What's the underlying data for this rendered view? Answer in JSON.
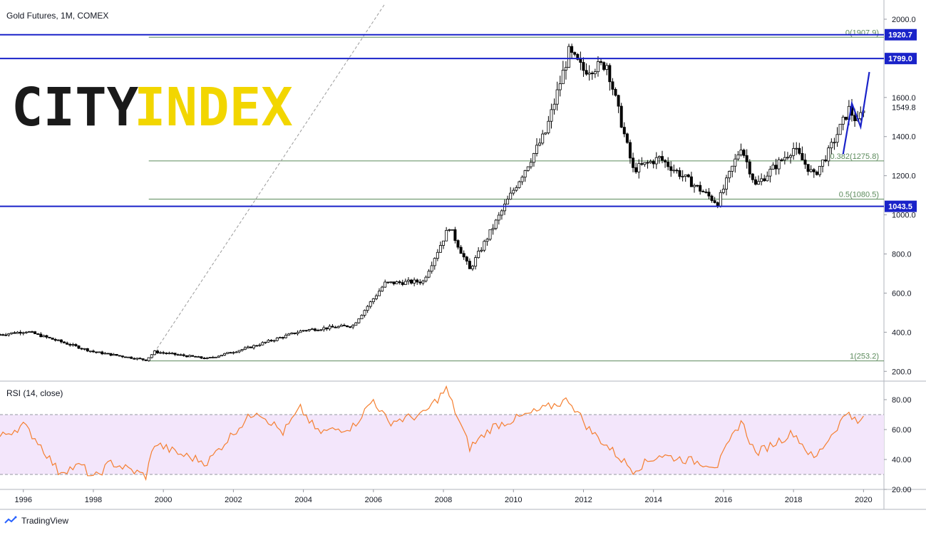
{
  "header": {
    "title": "Gold Futures, 1M, COMEX"
  },
  "logo": {
    "word1": "CITY",
    "word2": "INDEX",
    "color1": "#1a1a1a",
    "color2": "#f2d600"
  },
  "branding": {
    "text": "TradingView"
  },
  "price_axis": {
    "ticks": [
      "2000.0",
      "1600.0",
      "1400.0",
      "1200.0",
      "1000.0",
      "800.0",
      "600.0",
      "400.0",
      "200.0"
    ],
    "tagged_levels": [
      {
        "label": "1920.7",
        "value": 1920.7
      },
      {
        "label": "1799.0",
        "value": 1799.0
      },
      {
        "label": "1043.5",
        "value": 1043.5
      }
    ],
    "last_price_label": "1549.8"
  },
  "rsi_axis": {
    "title": "RSI (14, close)",
    "ticks": [
      "80.00",
      "60.00",
      "40.00",
      "20.00"
    ]
  },
  "time_axis": {
    "labels": [
      "1996",
      "1998",
      "2000",
      "2002",
      "2004",
      "2006",
      "2008",
      "2010",
      "2012",
      "2014",
      "2016",
      "2018",
      "2020"
    ]
  },
  "fib_levels": [
    {
      "label": "0(1907.9)",
      "value": 1907.9
    },
    {
      "label": "0.382(1275.8)",
      "value": 1275.8
    },
    {
      "label": "0.5(1080.5)",
      "value": 1080.5
    },
    {
      "label": "1(253.2)",
      "value": 253.2
    }
  ],
  "colors": {
    "candle_up": "#ffffff",
    "candle_down": "#000000",
    "horizontal_line": "#1a23c9",
    "fib_line": "#5b8a5b",
    "rsi_line": "#f57f30",
    "rsi_band": "#f3e6fb",
    "trend_dash": "#9a9a9a"
  },
  "chart_data": [
    {
      "type": "candlestick",
      "title": "Gold Futures, 1M, COMEX",
      "ylim": [
        150,
        2080
      ],
      "y_ticks": [
        200,
        400,
        600,
        800,
        1000,
        1200,
        1400,
        1600,
        2000
      ],
      "x_range": [
        "1995-05",
        "2020-08"
      ],
      "annotations": [
        "1920.7",
        "1799.0",
        "1043.5",
        "1549.8",
        "0(1907.9)",
        "0.382(1275.8)",
        "0.5(1080.5)",
        "1(253.2)"
      ],
      "close_path": [
        {
          "x": "1995-05",
          "y": 388
        },
        {
          "x": "1996-02",
          "y": 405
        },
        {
          "x": "1997-01",
          "y": 355
        },
        {
          "x": "1998-01",
          "y": 300
        },
        {
          "x": "1999-07",
          "y": 258
        },
        {
          "x": "1999-10",
          "y": 300
        },
        {
          "x": "2001-04",
          "y": 265
        },
        {
          "x": "2002-06",
          "y": 320
        },
        {
          "x": "2004-01",
          "y": 410
        },
        {
          "x": "2005-06",
          "y": 435
        },
        {
          "x": "2006-05",
          "y": 650
        },
        {
          "x": "2007-06",
          "y": 660
        },
        {
          "x": "2008-03",
          "y": 940
        },
        {
          "x": "2008-10",
          "y": 720
        },
        {
          "x": "2009-12",
          "y": 1100
        },
        {
          "x": "2010-12",
          "y": 1420
        },
        {
          "x": "2011-08",
          "y": 1830
        },
        {
          "x": "2012-01",
          "y": 1740
        },
        {
          "x": "2012-09",
          "y": 1770
        },
        {
          "x": "2013-06",
          "y": 1230
        },
        {
          "x": "2014-03",
          "y": 1290
        },
        {
          "x": "2015-11",
          "y": 1060
        },
        {
          "x": "2016-07",
          "y": 1350
        },
        {
          "x": "2016-12",
          "y": 1150
        },
        {
          "x": "2018-01",
          "y": 1340
        },
        {
          "x": "2018-08",
          "y": 1200
        },
        {
          "x": "2019-01",
          "y": 1320
        },
        {
          "x": "2019-08",
          "y": 1540
        },
        {
          "x": "2019-11",
          "y": 1470
        },
        {
          "x": "2020-01",
          "y": 1549.8
        }
      ],
      "horizontal_lines": [
        1920.7,
        1799.0,
        1043.5
      ],
      "trend_line": [
        {
          "x": "1999-08",
          "y": 253.2
        },
        {
          "x": "2006-05",
          "y": 2080
        }
      ],
      "projection": [
        {
          "x": "2019-06",
          "y": 1310
        },
        {
          "x": "2019-09",
          "y": 1570
        },
        {
          "x": "2019-12",
          "y": 1450
        },
        {
          "x": "2020-03",
          "y": 1730
        }
      ]
    },
    {
      "type": "line",
      "title": "RSI (14, close)",
      "ylim": [
        20,
        90
      ],
      "band": [
        30,
        70
      ],
      "y_ticks": [
        20,
        40,
        60,
        80
      ],
      "series": [
        {
          "values": [
            {
              "x": "1995-05",
              "y": 55
            },
            {
              "x": "1996-01",
              "y": 63
            },
            {
              "x": "1996-06",
              "y": 52
            },
            {
              "x": "1997-01",
              "y": 32
            },
            {
              "x": "1997-09",
              "y": 36
            },
            {
              "x": "1998-01",
              "y": 27
            },
            {
              "x": "1998-07",
              "y": 38
            },
            {
              "x": "1999-07",
              "y": 29
            },
            {
              "x": "1999-10",
              "y": 51
            },
            {
              "x": "2000-06",
              "y": 44
            },
            {
              "x": "2001-04",
              "y": 38
            },
            {
              "x": "2002-02",
              "y": 60
            },
            {
              "x": "2002-09",
              "y": 73
            },
            {
              "x": "2003-06",
              "y": 58
            },
            {
              "x": "2003-12",
              "y": 74
            },
            {
              "x": "2004-06",
              "y": 58
            },
            {
              "x": "2005-06",
              "y": 62
            },
            {
              "x": "2006-01",
              "y": 80
            },
            {
              "x": "2006-06",
              "y": 65
            },
            {
              "x": "2007-06",
              "y": 70
            },
            {
              "x": "2008-02",
              "y": 87
            },
            {
              "x": "2008-10",
              "y": 48
            },
            {
              "x": "2009-06",
              "y": 62
            },
            {
              "x": "2010-06",
              "y": 70
            },
            {
              "x": "2011-08",
              "y": 80
            },
            {
              "x": "2012-03",
              "y": 60
            },
            {
              "x": "2013-06",
              "y": 33
            },
            {
              "x": "2014-03",
              "y": 43
            },
            {
              "x": "2015-11",
              "y": 36
            },
            {
              "x": "2016-07",
              "y": 66
            },
            {
              "x": "2016-12",
              "y": 44
            },
            {
              "x": "2018-01",
              "y": 58
            },
            {
              "x": "2018-08",
              "y": 40
            },
            {
              "x": "2019-08",
              "y": 73
            },
            {
              "x": "2019-11",
              "y": 63
            },
            {
              "x": "2020-01",
              "y": 68
            }
          ]
        }
      ]
    }
  ]
}
